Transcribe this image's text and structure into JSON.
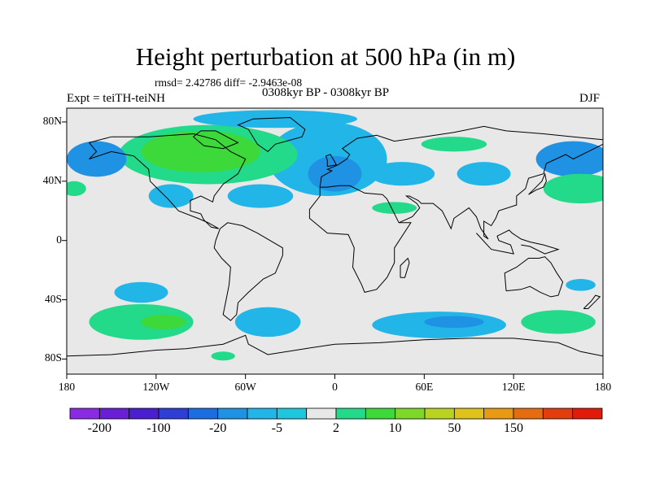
{
  "title": "Height perturbation at 500 hPa (in m)",
  "stats": "rmsd= 2.42786 diff= -2.9463e-08",
  "experiment": "Expt = teiTH-teiNH",
  "period": "0308kyr BP - 0308kyr BP",
  "season": "DJF",
  "lat_labels": [
    {
      "text": "80N",
      "lat": 80
    },
    {
      "text": "40N",
      "lat": 40
    },
    {
      "text": "0",
      "lat": 0
    },
    {
      "text": "40S",
      "lat": -40
    },
    {
      "text": "80S",
      "lat": -80
    }
  ],
  "lon_labels": [
    {
      "text": "180",
      "lon": -180
    },
    {
      "text": "120W",
      "lon": -120
    },
    {
      "text": "60W",
      "lon": -60
    },
    {
      "text": "0",
      "lon": 0
    },
    {
      "text": "60E",
      "lon": 60
    },
    {
      "text": "120E",
      "lon": 120
    },
    {
      "text": "180",
      "lon": 180
    }
  ],
  "colorbar": {
    "colors": [
      "#8a2be2",
      "#6a1ed6",
      "#4a1fd0",
      "#2f3fd6",
      "#1c6ee0",
      "#1f92e4",
      "#22b5e8",
      "#1ec7de",
      "#e8e8e8",
      "#23d98a",
      "#3dd93a",
      "#7ed82a",
      "#b9d420",
      "#dfc21a",
      "#e89a14",
      "#e56d10",
      "#e23d0c",
      "#e11a0a"
    ],
    "labels": [
      {
        "text": "-200",
        "boundary": 1
      },
      {
        "text": "-100",
        "boundary": 3
      },
      {
        "text": "-20",
        "boundary": 5
      },
      {
        "text": "-5",
        "boundary": 7
      },
      {
        "text": "2",
        "boundary": 9
      },
      {
        "text": "10",
        "boundary": 11
      },
      {
        "text": "50",
        "boundary": 13
      },
      {
        "text": "150",
        "boundary": 15
      }
    ]
  },
  "anomalies": [
    {
      "name": "n-atlantic-negative",
      "lon": -5,
      "lat": 55,
      "rx": 40,
      "ry": 25,
      "color": "#22b5e8"
    },
    {
      "name": "n-atlantic-negative-core",
      "lon": 0,
      "lat": 45,
      "rx": 18,
      "ry": 12,
      "color": "#1f92e4"
    },
    {
      "name": "n-america-positive",
      "lon": -85,
      "lat": 58,
      "rx": 60,
      "ry": 20,
      "color": "#23d98a"
    },
    {
      "name": "n-america-positive-core",
      "lon": -90,
      "lat": 60,
      "rx": 40,
      "ry": 14,
      "color": "#3dd93a"
    },
    {
      "name": "arctic-negative",
      "lon": -40,
      "lat": 82,
      "rx": 55,
      "ry": 6,
      "color": "#22b5e8"
    },
    {
      "name": "n-pacific-negative",
      "lon": -160,
      "lat": 55,
      "rx": 20,
      "ry": 12,
      "color": "#1f92e4"
    },
    {
      "name": "n-pacific-east-negative",
      "lon": 160,
      "lat": 55,
      "rx": 25,
      "ry": 12,
      "color": "#1f92e4"
    },
    {
      "name": "w-pacific-positive",
      "lon": 165,
      "lat": 35,
      "rx": 25,
      "ry": 10,
      "color": "#23d98a"
    },
    {
      "name": "dateline-positive",
      "lon": -175,
      "lat": 35,
      "rx": 8,
      "ry": 5,
      "color": "#23d98a"
    },
    {
      "name": "siberia-positive",
      "lon": 80,
      "lat": 65,
      "rx": 22,
      "ry": 5,
      "color": "#23d98a"
    },
    {
      "name": "asia-negative",
      "lon": 45,
      "lat": 45,
      "rx": 22,
      "ry": 8,
      "color": "#22b5e8"
    },
    {
      "name": "east-asia-negative",
      "lon": 100,
      "lat": 45,
      "rx": 18,
      "ry": 8,
      "color": "#22b5e8"
    },
    {
      "name": "mideast-positive",
      "lon": 40,
      "lat": 22,
      "rx": 15,
      "ry": 4,
      "color": "#23d98a"
    },
    {
      "name": "atlantic-negative",
      "lon": -50,
      "lat": 30,
      "rx": 22,
      "ry": 8,
      "color": "#22b5e8"
    },
    {
      "name": "caribbean-negative",
      "lon": -110,
      "lat": 30,
      "rx": 15,
      "ry": 8,
      "color": "#22b5e8"
    },
    {
      "name": "s-pacific-positive",
      "lon": -130,
      "lat": -55,
      "rx": 35,
      "ry": 12,
      "color": "#23d98a"
    },
    {
      "name": "s-pacific-positive-core",
      "lon": -115,
      "lat": -55,
      "rx": 15,
      "ry": 5,
      "color": "#3dd93a"
    },
    {
      "name": "s-pacific-negative",
      "lon": -130,
      "lat": -35,
      "rx": 18,
      "ry": 7,
      "color": "#22b5e8"
    },
    {
      "name": "drake-negative",
      "lon": -45,
      "lat": -55,
      "rx": 22,
      "ry": 10,
      "color": "#22b5e8"
    },
    {
      "name": "s-indian-negative",
      "lon": 70,
      "lat": -57,
      "rx": 45,
      "ry": 9,
      "color": "#22b5e8"
    },
    {
      "name": "s-indian-negative-core",
      "lon": 80,
      "lat": -55,
      "rx": 20,
      "ry": 4,
      "color": "#1f92e4"
    },
    {
      "name": "tasman-positive",
      "lon": 150,
      "lat": -55,
      "rx": 25,
      "ry": 8,
      "color": "#23d98a"
    },
    {
      "name": "e-australia-negative",
      "lon": 165,
      "lat": -30,
      "rx": 10,
      "ry": 4,
      "color": "#22b5e8"
    },
    {
      "name": "antarctic-positive",
      "lon": -75,
      "lat": -78,
      "rx": 8,
      "ry": 3,
      "color": "#23d98a"
    }
  ],
  "coastlines": [
    {
      "name": "north-america-coastline",
      "points": [
        [
          -165,
          66
        ],
        [
          -150,
          70
        ],
        [
          -125,
          70
        ],
        [
          -95,
          72
        ],
        [
          -80,
          68
        ],
        [
          -70,
          60
        ],
        [
          -60,
          55
        ],
        [
          -65,
          45
        ],
        [
          -75,
          38
        ],
        [
          -81,
          30
        ],
        [
          -82,
          26
        ],
        [
          -90,
          30
        ],
        [
          -97,
          27
        ],
        [
          -97,
          20
        ],
        [
          -90,
          18
        ],
        [
          -88,
          14
        ],
        [
          -83,
          9
        ],
        [
          -78,
          8
        ],
        [
          -85,
          12
        ],
        [
          -92,
          15
        ],
        [
          -105,
          20
        ],
        [
          -112,
          28
        ],
        [
          -117,
          33
        ],
        [
          -124,
          40
        ],
        [
          -125,
          48
        ],
        [
          -135,
          57
        ],
        [
          -150,
          60
        ],
        [
          -165,
          55
        ],
        [
          -160,
          60
        ],
        [
          -165,
          66
        ]
      ]
    },
    {
      "name": "greenland-coastline",
      "points": [
        [
          -55,
          82
        ],
        [
          -30,
          83
        ],
        [
          -20,
          75
        ],
        [
          -22,
          70
        ],
        [
          -40,
          65
        ],
        [
          -45,
          60
        ],
        [
          -52,
          65
        ],
        [
          -58,
          75
        ],
        [
          -65,
          78
        ],
        [
          -55,
          82
        ]
      ]
    },
    {
      "name": "south-america-coastline",
      "points": [
        [
          -77,
          8
        ],
        [
          -72,
          12
        ],
        [
          -62,
          10
        ],
        [
          -52,
          5
        ],
        [
          -35,
          -5
        ],
        [
          -35,
          -10
        ],
        [
          -40,
          -22
        ],
        [
          -48,
          -26
        ],
        [
          -58,
          -35
        ],
        [
          -65,
          -42
        ],
        [
          -66,
          -50
        ],
        [
          -70,
          -54
        ],
        [
          -75,
          -50
        ],
        [
          -73,
          -40
        ],
        [
          -71,
          -30
        ],
        [
          -70,
          -18
        ],
        [
          -76,
          -12
        ],
        [
          -81,
          -5
        ],
        [
          -80,
          0
        ],
        [
          -77,
          8
        ]
      ]
    },
    {
      "name": "eurasia-africa-coastline",
      "points": [
        [
          -10,
          36
        ],
        [
          -5,
          36
        ],
        [
          3,
          37
        ],
        [
          10,
          37
        ],
        [
          20,
          32
        ],
        [
          32,
          31
        ],
        [
          35,
          28
        ],
        [
          43,
          12
        ],
        [
          51,
          12
        ],
        [
          40,
          -5
        ],
        [
          40,
          -15
        ],
        [
          35,
          -25
        ],
        [
          28,
          -33
        ],
        [
          20,
          -35
        ],
        [
          18,
          -30
        ],
        [
          12,
          -18
        ],
        [
          13,
          -5
        ],
        [
          9,
          4
        ],
        [
          -5,
          5
        ],
        [
          -17,
          15
        ],
        [
          -17,
          21
        ],
        [
          -10,
          30
        ],
        [
          -10,
          36
        ]
      ]
    },
    {
      "name": "eurasia-north-coastline",
      "points": [
        [
          -10,
          36
        ],
        [
          -9,
          43
        ],
        [
          -2,
          47
        ],
        [
          -5,
          48
        ],
        [
          2,
          51
        ],
        [
          8,
          55
        ],
        [
          10,
          58
        ],
        [
          5,
          62
        ],
        [
          15,
          69
        ],
        [
          28,
          71
        ],
        [
          40,
          67
        ],
        [
          60,
          70
        ],
        [
          80,
          73
        ],
        [
          100,
          77
        ],
        [
          115,
          74
        ],
        [
          140,
          72
        ],
        [
          160,
          70
        ],
        [
          180,
          68
        ]
      ]
    },
    {
      "name": "asia-east-coastline",
      "points": [
        [
          180,
          65
        ],
        [
          170,
          60
        ],
        [
          160,
          55
        ],
        [
          155,
          58
        ],
        [
          142,
          52
        ],
        [
          140,
          45
        ],
        [
          130,
          42
        ],
        [
          128,
          35
        ],
        [
          122,
          30
        ],
        [
          122,
          24
        ],
        [
          110,
          20
        ],
        [
          108,
          15
        ],
        [
          105,
          10
        ],
        [
          100,
          13
        ],
        [
          100,
          3
        ],
        [
          103,
          1
        ],
        [
          98,
          8
        ],
        [
          95,
          16
        ],
        [
          90,
          22
        ],
        [
          80,
          15
        ],
        [
          78,
          8
        ],
        [
          72,
          20
        ],
        [
          66,
          25
        ],
        [
          58,
          25
        ],
        [
          56,
          27
        ],
        [
          50,
          30
        ],
        [
          48,
          30
        ],
        [
          55,
          25
        ],
        [
          57,
          22
        ],
        [
          52,
          16
        ],
        [
          43,
          12
        ]
      ]
    },
    {
      "name": "australia-coastline",
      "points": [
        [
          115,
          -34
        ],
        [
          114,
          -22
        ],
        [
          122,
          -18
        ],
        [
          130,
          -12
        ],
        [
          137,
          -12
        ],
        [
          141,
          -11
        ],
        [
          145,
          -15
        ],
        [
          149,
          -22
        ],
        [
          153,
          -28
        ],
        [
          150,
          -37
        ],
        [
          145,
          -38
        ],
        [
          138,
          -35
        ],
        [
          131,
          -31
        ],
        [
          125,
          -33
        ],
        [
          115,
          -34
        ]
      ]
    },
    {
      "name": "antarctica-coastline",
      "points": [
        [
          -180,
          -78
        ],
        [
          -150,
          -77
        ],
        [
          -120,
          -74
        ],
        [
          -100,
          -73
        ],
        [
          -75,
          -70
        ],
        [
          -60,
          -64
        ],
        [
          -58,
          -70
        ],
        [
          -45,
          -77
        ],
        [
          -20,
          -73
        ],
        [
          0,
          -70
        ],
        [
          30,
          -69
        ],
        [
          60,
          -67
        ],
        [
          90,
          -66
        ],
        [
          120,
          -66
        ],
        [
          150,
          -69
        ],
        [
          165,
          -75
        ],
        [
          180,
          -78
        ]
      ]
    },
    {
      "name": "britain-coastline",
      "points": [
        [
          -5,
          50
        ],
        [
          1,
          51
        ],
        [
          0,
          53
        ],
        [
          -3,
          58
        ],
        [
          -6,
          57
        ],
        [
          -5,
          54
        ],
        [
          -5,
          50
        ]
      ]
    },
    {
      "name": "japan-coastline",
      "points": [
        [
          130,
          31
        ],
        [
          135,
          34
        ],
        [
          140,
          36
        ],
        [
          142,
          40
        ],
        [
          141,
          45
        ],
        [
          139,
          40
        ],
        [
          133,
          34
        ],
        [
          130,
          31
        ]
      ]
    },
    {
      "name": "madagascar-coastline",
      "points": [
        [
          44,
          -25
        ],
        [
          47,
          -25
        ],
        [
          50,
          -15
        ],
        [
          49,
          -12
        ],
        [
          44,
          -17
        ],
        [
          44,
          -25
        ]
      ]
    },
    {
      "name": "new-zealand-coastline",
      "points": [
        [
          167,
          -46
        ],
        [
          172,
          -41
        ],
        [
          175,
          -37
        ],
        [
          178,
          -38
        ],
        [
          174,
          -42
        ],
        [
          170,
          -46
        ],
        [
          167,
          -46
        ]
      ]
    },
    {
      "name": "indonesia-coastline",
      "points": [
        [
          95,
          5
        ],
        [
          105,
          -6
        ],
        [
          115,
          -8
        ],
        [
          120,
          -9
        ],
        [
          118,
          -3
        ],
        [
          110,
          0
        ],
        [
          109,
          3
        ],
        [
          117,
          7
        ],
        [
          119,
          5
        ],
        [
          125,
          1
        ],
        [
          131,
          -1
        ],
        [
          140,
          -3
        ],
        [
          150,
          -6
        ],
        [
          141,
          -9
        ],
        [
          131,
          -4
        ],
        [
          125,
          -3
        ]
      ]
    },
    {
      "name": "baffin-coastline",
      "points": [
        [
          -90,
          74
        ],
        [
          -80,
          74
        ],
        [
          -65,
          66
        ],
        [
          -75,
          62
        ],
        [
          -88,
          64
        ],
        [
          -95,
          70
        ],
        [
          -90,
          74
        ]
      ]
    }
  ]
}
